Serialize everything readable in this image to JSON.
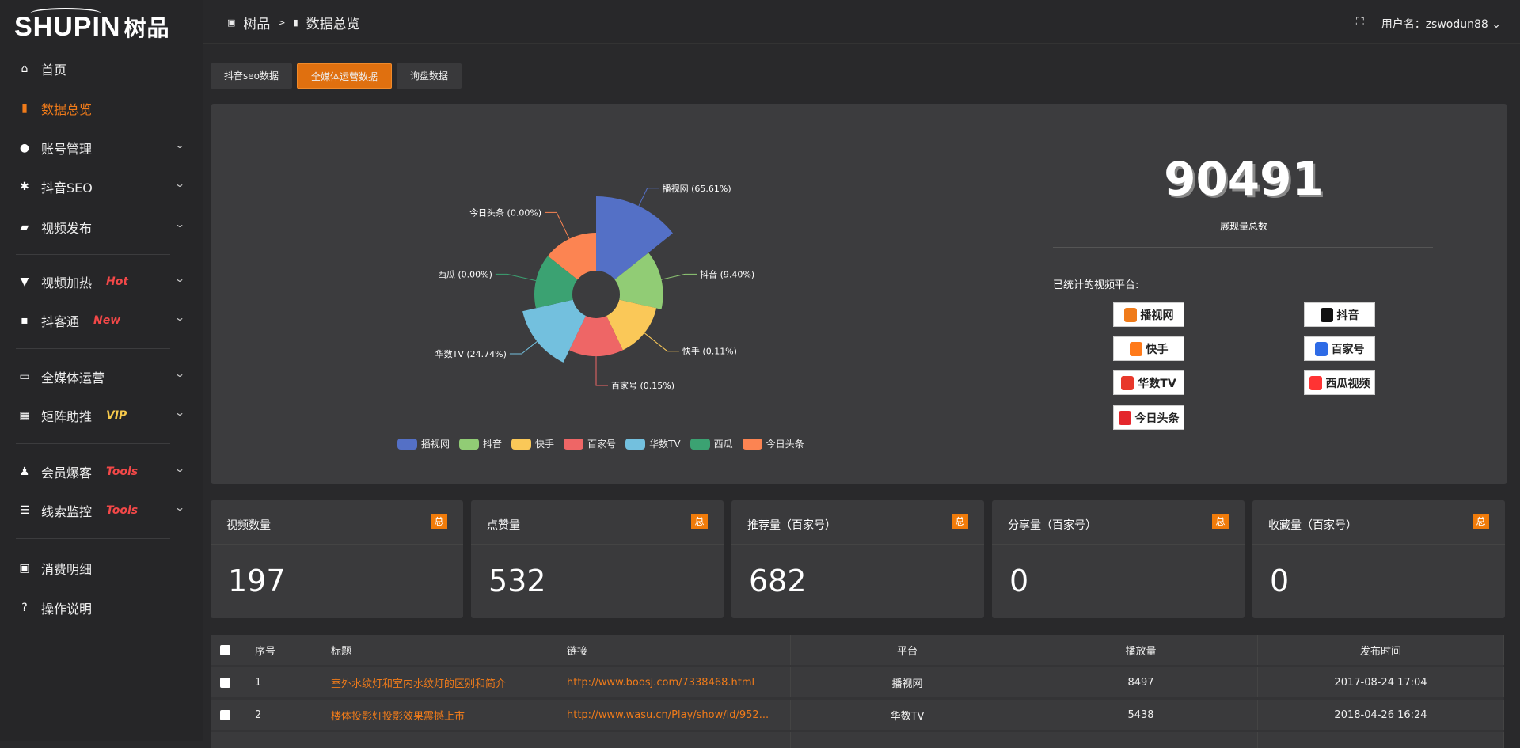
{
  "brand": {
    "logo_text": "SHUPIN",
    "logo_cn": "树品"
  },
  "header": {
    "breadcrumb": [
      "树品",
      ">",
      "数据总览"
    ],
    "username": "用户名：zswodun88"
  },
  "sidebar": {
    "items": [
      {
        "label": "首页",
        "icon": "home-icon"
      },
      {
        "label": "数据总览",
        "icon": "bar-chart-icon",
        "active": true
      },
      {
        "label": "账号管理",
        "icon": "user-icon"
      },
      {
        "label": "抖音SEO",
        "icon": "gear-icon"
      },
      {
        "label": "视频发布",
        "icon": "camera-icon"
      },
      {
        "label": "视频加热",
        "icon": "fire-sign-icon",
        "tag": "Hot"
      },
      {
        "label": "抖客通",
        "icon": "chat-icon",
        "tag": "New"
      },
      {
        "label": "全媒体运营",
        "icon": "monitor-icon"
      },
      {
        "label": "矩阵助推",
        "icon": "grid-icon",
        "tag": "VIP"
      },
      {
        "label": "会员爆客",
        "icon": "member-icon",
        "tag": "Tools"
      },
      {
        "label": "线索监控",
        "icon": "sliders-icon",
        "tag": "Tools"
      },
      {
        "label": "消费明细",
        "icon": "wallet-icon"
      },
      {
        "label": "操作说明",
        "icon": "help-icon"
      }
    ]
  },
  "tabs": [
    {
      "label": "抖音seo数据"
    },
    {
      "label": "全媒体运营数据",
      "active": true
    },
    {
      "label": "询盘数据"
    }
  ],
  "chart_data": {
    "type": "pie",
    "rose": true,
    "categories": [
      "播视网",
      "抖音",
      "快手",
      "百家号",
      "华数TV",
      "西瓜",
      "今日头条"
    ],
    "values": [
      65.61,
      9.4,
      0.11,
      0.15,
      24.74,
      0.0,
      0.0
    ],
    "labels": [
      "播视网 (65.61%)",
      "抖音 (9.40%)",
      "快手 (0.11%)",
      "百家号 (0.15%)",
      "华数TV (24.74%)",
      "西瓜 (0.00%)",
      "今日头条 (0.00%)"
    ],
    "colors": [
      "#5470c6",
      "#91cc75",
      "#fac858",
      "#ee6666",
      "#73c0de",
      "#3ba272",
      "#fc8452"
    ],
    "legend": "bottom"
  },
  "summary": {
    "total": "90491",
    "total_label": "展现量总数",
    "platforms_label": "已统计的视频平台:",
    "logos": [
      {
        "text": "播视网",
        "color": "#f07b1a"
      },
      {
        "text": "抖音",
        "color": "#111"
      },
      {
        "text": "快手",
        "color": "#ff7a1a"
      },
      {
        "text": "百家号",
        "color": "#2e6be6"
      },
      {
        "text": "华数TV",
        "color": "#e8382b"
      },
      {
        "text": "西瓜视频",
        "color": "#f33"
      },
      {
        "text": "今日头条",
        "color": "#e4262c"
      }
    ]
  },
  "stats": [
    {
      "title": "视频数量",
      "badge": "总",
      "value": "197"
    },
    {
      "title": "点赞量",
      "badge": "总",
      "value": "532"
    },
    {
      "title": "推荐量（百家号）",
      "badge": "总",
      "value": "682"
    },
    {
      "title": "分享量（百家号）",
      "badge": "总",
      "value": "0"
    },
    {
      "title": "收藏量（百家号）",
      "badge": "总",
      "value": "0"
    }
  ],
  "table": {
    "headers": [
      "序号",
      "标题",
      "链接",
      "平台",
      "播放量",
      "发布时间"
    ],
    "rows": [
      [
        "1",
        "室外水纹灯和室内水纹灯的区别和简介",
        "http://www.boosj.com/7338468.html",
        "播视网",
        "8497",
        "2017-08-24 17:04"
      ],
      [
        "2",
        "楼体投影灯投影效果震撼上市",
        "http://www.wasu.cn/Play/show/id/952...",
        "华数TV",
        "5438",
        "2018-04-26 16:24"
      ]
    ]
  }
}
